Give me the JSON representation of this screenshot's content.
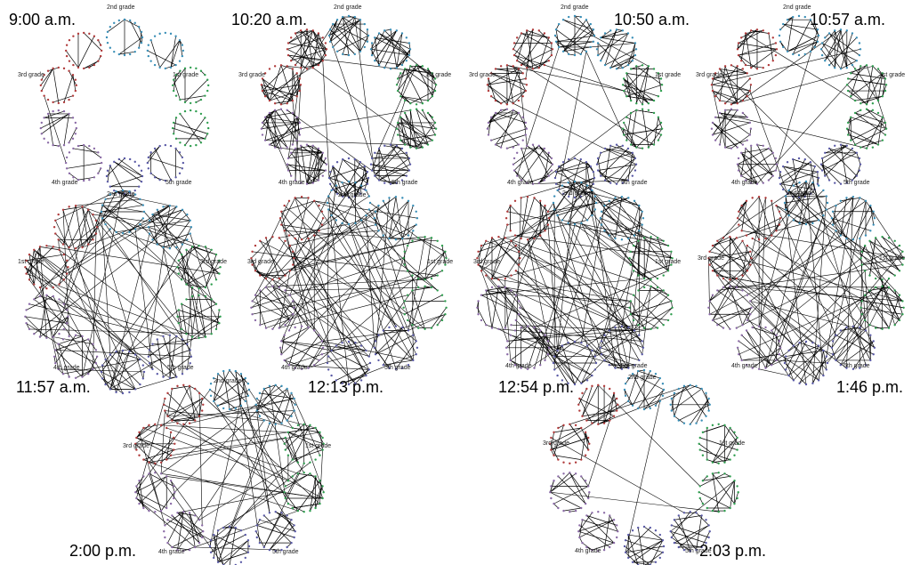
{
  "panels": [
    {
      "time": "9:00 a.m.",
      "grade_labels": [
        "2nd grade",
        "1st grade",
        "3rd grade",
        "4th grade",
        "2nd grade",
        "5th grade"
      ],
      "pattern": "within-class, sparse"
    },
    {
      "time": "10:20 a.m.",
      "grade_labels": [
        "2nd grade",
        "1st grade",
        "3rd grade",
        "4th grade",
        "2nd grade",
        "5th grade"
      ],
      "pattern": "within-class dense, some cross-class"
    },
    {
      "time": "10:50 a.m.",
      "grade_labels": [
        "2nd grade",
        "1st grade",
        "3rd grade",
        "4th grade",
        "2nd grade",
        "5th grade"
      ],
      "pattern": "within-class dense"
    },
    {
      "time": "10:57 a.m.",
      "grade_labels": [
        "2nd grade",
        "1st grade",
        "3rd grade",
        "4th grade",
        "2nd grade",
        "5th grade"
      ],
      "pattern": "within-class dense"
    },
    {
      "time": "11:57 a.m.",
      "grade_labels": [
        "1st grade",
        "3rd grade",
        "4th grade",
        "5th grade"
      ],
      "pattern": "many cross-class (lunch)"
    },
    {
      "time": "12:13 p.m.",
      "grade_labels": [
        "3rd grade",
        "1st grade",
        "4th grade",
        "5th grade"
      ],
      "pattern": "many cross-class"
    },
    {
      "time": "12:54 p.m.",
      "grade_labels": [
        "3rd grade",
        "1st grade",
        "4th grade",
        "5th grade"
      ],
      "pattern": "many cross-class"
    },
    {
      "time": "1:46 p.m.",
      "grade_labels": [
        "3rd grade",
        "1st grade",
        "4th grade",
        "5th grade"
      ],
      "pattern": "many cross-class"
    },
    {
      "time": "2:00 p.m.",
      "grade_labels": [
        "2nd grade",
        "3rd grade",
        "1st grade",
        "4th grade",
        "5th grade"
      ],
      "pattern": "mixed"
    },
    {
      "time": "2:03 p.m.",
      "grade_labels": [
        "2nd grade",
        "3rd grade",
        "1st grade",
        "4th grade",
        "5th grade"
      ],
      "pattern": "within-class, sparse cross"
    }
  ],
  "class_colors": [
    "#3a8fb7",
    "#2f9e4f",
    "#5a5aa6",
    "#8a6aa6",
    "#b03a3a"
  ]
}
